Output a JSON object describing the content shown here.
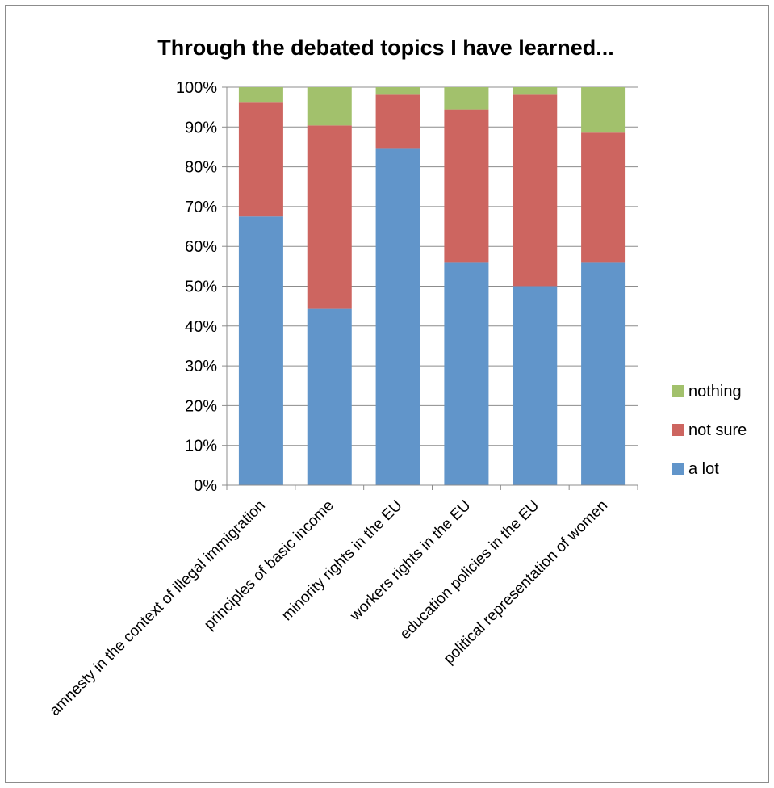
{
  "chart_data": {
    "type": "bar",
    "stacked": true,
    "percent_stacked": true,
    "title": "Through the debated topics I have learned...",
    "xlabel": "",
    "ylabel": "",
    "ylim": [
      0,
      100
    ],
    "y_ticks": [
      "0%",
      "10%",
      "20%",
      "30%",
      "40%",
      "50%",
      "60%",
      "70%",
      "80%",
      "90%",
      "100%"
    ],
    "grid": true,
    "legend_position": "right",
    "categories": [
      "amnesty in the context of illegal immigration",
      "principles of basic income",
      "minority rights in the EU",
      "workers rights in the EU",
      "education policies in the EU",
      "political representation of women"
    ],
    "series": [
      {
        "name": "a lot",
        "color": "#6195ca",
        "values": [
          67.5,
          44.3,
          84.7,
          55.9,
          50.0,
          55.9
        ]
      },
      {
        "name": "not sure",
        "color": "#cd6560",
        "values": [
          28.8,
          46.1,
          13.4,
          38.5,
          48.1,
          32.7
        ]
      },
      {
        "name": "nothing",
        "color": "#a2c16c",
        "values": [
          3.7,
          9.6,
          1.9,
          5.6,
          1.9,
          11.4
        ]
      }
    ],
    "legend_order": [
      "nothing",
      "not sure",
      "a lot"
    ]
  }
}
